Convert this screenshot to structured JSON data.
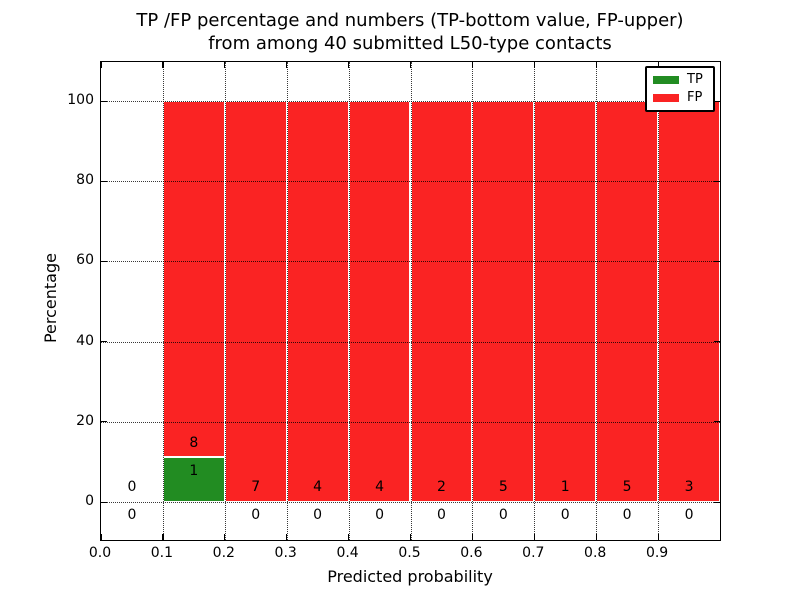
{
  "chart_data": {
    "type": "bar",
    "stacked": true,
    "title_line1": "TP /FP percentage and numbers (TP-bottom value, FP-upper)",
    "title_line2": "from among 40 submitted L50-type contacts",
    "xlabel": "Predicted probability",
    "ylabel": "Percentage",
    "xlim": [
      0.0,
      1.0
    ],
    "ylim": [
      -9.7,
      110.2
    ],
    "grid": "dotted",
    "colors": {
      "tp": "#228c22",
      "fp": "#fa2323",
      "bar_edge": "#ffffff"
    },
    "legend": {
      "position": "upper right",
      "entries": [
        {
          "label": "TP"
        },
        {
          "label": "FP"
        }
      ]
    },
    "xticks": [
      {
        "pos": 0.0,
        "label": "0.0"
      },
      {
        "pos": 0.1,
        "label": "0.1"
      },
      {
        "pos": 0.2,
        "label": "0.2"
      },
      {
        "pos": 0.3,
        "label": "0.3"
      },
      {
        "pos": 0.4,
        "label": "0.4"
      },
      {
        "pos": 0.5,
        "label": "0.5"
      },
      {
        "pos": 0.6,
        "label": "0.6"
      },
      {
        "pos": 0.7,
        "label": "0.7"
      },
      {
        "pos": 0.8,
        "label": "0.8"
      },
      {
        "pos": 0.9,
        "label": "0.9"
      },
      {
        "pos": 1.0,
        "label": ""
      }
    ],
    "yticks": [
      {
        "pos": 0,
        "label": "0"
      },
      {
        "pos": 20,
        "label": "20"
      },
      {
        "pos": 40,
        "label": "40"
      },
      {
        "pos": 60,
        "label": "60"
      },
      {
        "pos": 80,
        "label": "80"
      },
      {
        "pos": 100,
        "label": "100"
      }
    ],
    "bins": [
      {
        "range": "0.0-0.1",
        "x0": 0.0,
        "x1": 0.1,
        "tp_count": 0,
        "fp_count": 0,
        "tp_pct": 0,
        "fp_pct": 0
      },
      {
        "range": "0.1-0.2",
        "x0": 0.1,
        "x1": 0.2,
        "tp_count": 1,
        "fp_count": 8,
        "tp_pct": 11.111,
        "fp_pct": 88.889
      },
      {
        "range": "0.2-0.3",
        "x0": 0.2,
        "x1": 0.3,
        "tp_count": 0,
        "fp_count": 7,
        "tp_pct": 0,
        "fp_pct": 100
      },
      {
        "range": "0.3-0.4",
        "x0": 0.3,
        "x1": 0.4,
        "tp_count": 0,
        "fp_count": 4,
        "tp_pct": 0,
        "fp_pct": 100
      },
      {
        "range": "0.4-0.5",
        "x0": 0.4,
        "x1": 0.5,
        "tp_count": 0,
        "fp_count": 4,
        "tp_pct": 0,
        "fp_pct": 100
      },
      {
        "range": "0.5-0.6",
        "x0": 0.5,
        "x1": 0.6,
        "tp_count": 0,
        "fp_count": 2,
        "tp_pct": 0,
        "fp_pct": 100
      },
      {
        "range": "0.6-0.7",
        "x0": 0.6,
        "x1": 0.7,
        "tp_count": 0,
        "fp_count": 5,
        "tp_pct": 0,
        "fp_pct": 100
      },
      {
        "range": "0.7-0.8",
        "x0": 0.7,
        "x1": 0.8,
        "tp_count": 0,
        "fp_count": 1,
        "tp_pct": 0,
        "fp_pct": 100
      },
      {
        "range": "0.8-0.9",
        "x0": 0.8,
        "x1": 0.9,
        "tp_count": 0,
        "fp_count": 5,
        "tp_pct": 0,
        "fp_pct": 100
      },
      {
        "range": "0.9-1.0",
        "x0": 0.9,
        "x1": 1.0,
        "tp_count": 0,
        "fp_count": 3,
        "tp_pct": 0,
        "fp_pct": 100
      }
    ]
  }
}
